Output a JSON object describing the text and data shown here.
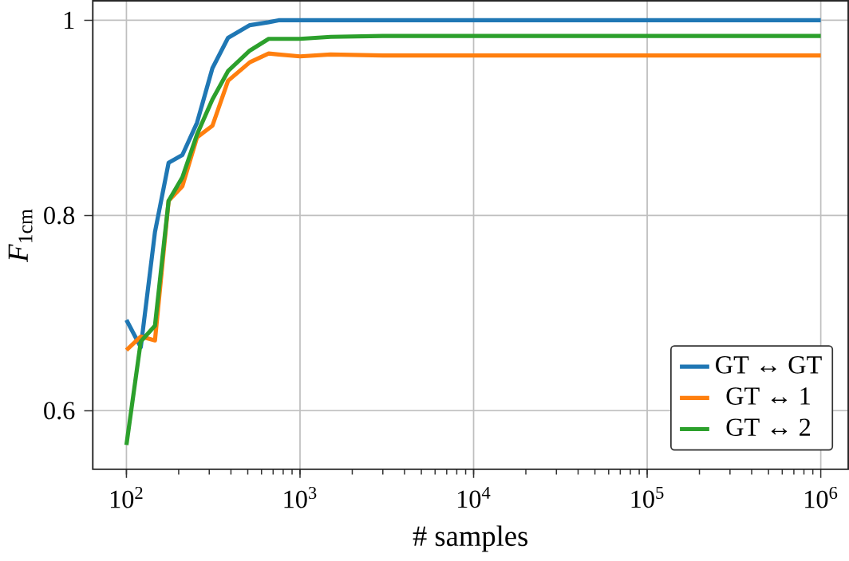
{
  "chart_data": {
    "type": "line",
    "xlabel": "# samples",
    "ylabel": "*F*$_{1cm}$",
    "x": [
      100,
      121,
      146,
      175,
      210,
      255,
      313,
      385,
      514,
      660,
      753,
      1000,
      1500,
      3000,
      10000,
      100000,
      1000000
    ],
    "series": [
      {
        "name": "GT ↔ GT",
        "color": "#1f77b4",
        "values": [
          0.693,
          0.665,
          0.783,
          0.854,
          0.862,
          0.895,
          0.951,
          0.982,
          0.995,
          0.998,
          1.0,
          1.0,
          1.0,
          1.0,
          1.0,
          1.0,
          1.0
        ]
      },
      {
        "name": "GT ↔ 1",
        "color": "#ff7f0e",
        "values": [
          0.662,
          0.676,
          0.672,
          0.815,
          0.83,
          0.88,
          0.892,
          0.938,
          0.957,
          0.966,
          0.965,
          0.963,
          0.965,
          0.964,
          0.964,
          0.964,
          0.964
        ]
      },
      {
        "name": "GT ↔ 2",
        "color": "#2ca02c",
        "values": [
          0.565,
          0.671,
          0.687,
          0.815,
          0.839,
          0.883,
          0.919,
          0.948,
          0.969,
          0.981,
          0.981,
          0.981,
          0.983,
          0.984,
          0.984,
          0.984,
          0.984
        ]
      }
    ],
    "log": "x",
    "xlim": [
      64,
      1440000
    ],
    "ylim": [
      0.54,
      1.02
    ],
    "xticks": [
      {
        "value": 100,
        "label": "10$^{2}$"
      },
      {
        "value": 1000,
        "label": "10$^{3}$"
      },
      {
        "value": 10000,
        "label": "10$^{4}$"
      },
      {
        "value": 100000,
        "label": "10$^{5}$"
      },
      {
        "value": 1000000,
        "label": "10$^{6}$"
      }
    ],
    "yticks": [
      0.6,
      0.8,
      1
    ],
    "grid": true,
    "legend": "bottom right",
    "marker": "none",
    "line_style": "solid"
  }
}
